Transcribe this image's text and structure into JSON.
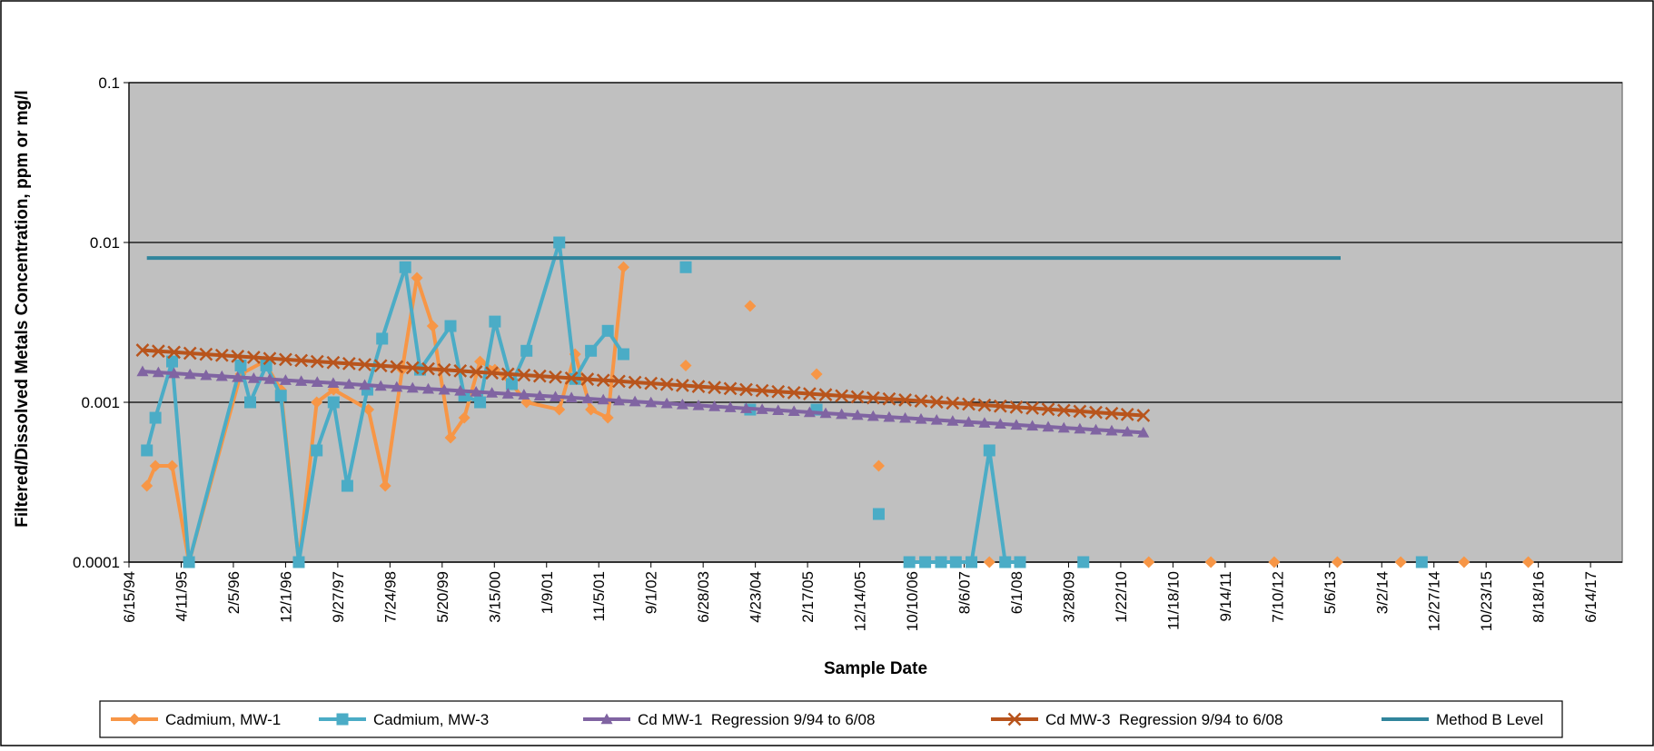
{
  "chart_data": {
    "type": "line",
    "x_label": "Sample Date",
    "y_label": "Filtered/Dissolved Metals Concentration, ppm or mg/l",
    "log_y": true,
    "grid": true,
    "legend": "bottom",
    "plot_background": "#c0c0c0",
    "ylim": [
      0.0001,
      0.1
    ],
    "yticks": [
      0.0001,
      0.001,
      0.01,
      0.1
    ],
    "xlim": [
      "6/15/94",
      "12/13/17"
    ],
    "xticks": [
      "6/15/94",
      "4/11/95",
      "2/5/96",
      "12/1/96",
      "9/27/97",
      "7/24/98",
      "5/20/99",
      "3/15/00",
      "1/9/01",
      "11/5/01",
      "9/1/02",
      "6/28/03",
      "4/23/04",
      "2/17/05",
      "12/14/05",
      "10/10/06",
      "8/6/07",
      "6/1/08",
      "3/28/09",
      "1/22/10",
      "11/18/10",
      "9/14/11",
      "7/10/12",
      "5/6/13",
      "3/2/14",
      "12/27/14",
      "10/23/15",
      "8/18/16",
      "6/14/17"
    ],
    "series": [
      {
        "name": "Cadmium, MW-1",
        "color": "#f79646",
        "marker": "diamond",
        "x": [
          "9/26/94",
          "11/14/94",
          "2/18/95",
          "5/26/95",
          "3/18/96",
          "7/30/96",
          "11/4/96",
          "2/15/97",
          "5/29/97",
          "9/3/97",
          "3/22/98",
          "6/27/98",
          "10/2/98",
          "12/26/98",
          "3/26/99",
          "7/7/99",
          "9/24/99",
          "12/24/99",
          "3/18/00",
          "6/23/00",
          "9/16/00",
          "3/23/01",
          "6/22/01",
          "9/21/01",
          "12/27/01",
          "3/27/02",
          null,
          "3/20/03",
          null,
          "3/24/04",
          null,
          "4/10/05",
          null,
          "4/2/06",
          null,
          "12/29/07",
          null,
          "7/2/10",
          null,
          "6/24/11",
          null,
          "6/22/12",
          null,
          "6/20/13",
          null,
          "6/19/14",
          null,
          "6/18/15",
          null,
          "6/21/16"
        ],
        "values": [
          0.0003,
          0.0004,
          0.0004,
          0.0001,
          0.0015,
          0.0018,
          0.0012,
          0.0001,
          0.001,
          0.0012,
          0.0009,
          0.0003,
          0.0016,
          0.006,
          0.003,
          0.0006,
          0.0008,
          0.0018,
          0.0016,
          0.0013,
          0.001,
          0.0009,
          0.002,
          0.0009,
          0.0008,
          0.007,
          null,
          0.0017,
          null,
          0.004,
          null,
          0.0015,
          null,
          0.0004,
          null,
          0.0001,
          null,
          0.0001,
          null,
          0.0001,
          null,
          0.0001,
          null,
          0.0001,
          null,
          0.0001,
          null,
          0.0001,
          null,
          0.0001
        ]
      },
      {
        "name": "Cadmium, MW-3",
        "color": "#4bacc6",
        "marker": "square",
        "x": [
          "9/26/94",
          "11/14/94",
          "2/18/95",
          "5/26/95",
          "3/18/96",
          "5/12/96",
          "8/12/96",
          "11/4/96",
          "2/15/97",
          "5/29/97",
          "9/3/97",
          "11/21/97",
          "3/16/98",
          "6/9/98",
          "10/20/98",
          "1/13/99",
          "7/7/99",
          "9/24/99",
          "12/24/99",
          "3/18/00",
          "6/23/00",
          "9/16/00",
          "3/23/01",
          "6/22/01",
          "9/21/01",
          "12/27/01",
          "3/27/02",
          null,
          "3/20/03",
          null,
          "3/24/04",
          null,
          "4/10/05",
          null,
          "4/2/06",
          null,
          "9/25/06",
          "12/25/06",
          "3/26/07",
          "6/19/07",
          "9/17/07",
          "12/29/07",
          "3/29/08",
          "6/22/08",
          null,
          "6/21/09",
          null,
          "10/18/14"
        ],
        "values": [
          0.0005,
          0.0008,
          0.0018,
          0.0001,
          0.0017,
          0.001,
          0.0017,
          0.0011,
          0.0001,
          0.0005,
          0.001,
          0.0003,
          0.0012,
          0.0025,
          0.007,
          0.0016,
          0.003,
          0.0011,
          0.001,
          0.0032,
          0.0013,
          0.0021,
          0.01,
          0.0014,
          0.0021,
          0.0028,
          0.002,
          null,
          0.007,
          null,
          0.0009,
          null,
          0.0009,
          null,
          0.0002,
          null,
          0.0001,
          0.0001,
          0.0001,
          0.0001,
          0.0001,
          0.0005,
          0.0001,
          0.0001,
          null,
          0.0001,
          null,
          0.0001
        ]
      },
      {
        "name": "Cd MW-1  Regression 9/94 to 6/08",
        "color": "#8064a2",
        "marker": "triangle",
        "x": [
          "9/1/94",
          "12/1/94",
          "3/1/95",
          "6/1/95",
          "9/1/95",
          "12/1/95",
          "3/1/96",
          "6/1/96",
          "9/1/96",
          "12/1/96",
          "3/1/97",
          "6/1/97",
          "9/1/97",
          "12/1/97",
          "3/1/98",
          "6/1/98",
          "9/1/98",
          "12/1/98",
          "3/1/99",
          "6/1/99",
          "9/1/99",
          "12/1/99",
          "3/1/00",
          "6/1/00",
          "9/1/00",
          "12/1/00",
          "3/1/01",
          "6/1/01",
          "9/1/01",
          "12/1/01",
          "3/1/02",
          "6/1/02",
          "9/1/02",
          "12/1/02",
          "3/1/03",
          "6/1/03",
          "9/1/03",
          "12/1/03",
          "3/1/04",
          "6/1/04",
          "9/1/04",
          "12/1/04",
          "3/1/05",
          "6/1/05",
          "9/1/05",
          "12/1/05",
          "3/1/06",
          "6/1/06",
          "9/1/06",
          "12/1/06",
          "3/1/07",
          "6/1/07",
          "9/1/07",
          "12/1/07",
          "3/1/08",
          "6/1/08",
          "9/1/08",
          "12/1/08",
          "3/1/09",
          "6/1/09",
          "9/1/09",
          "12/1/09",
          "3/1/10",
          "6/1/10"
        ],
        "values": [
          0.00156,
          0.001538,
          0.001517,
          0.001496,
          0.001475,
          0.001455,
          0.001434,
          0.001414,
          0.001395,
          0.001375,
          0.001356,
          0.001337,
          0.001319,
          0.0013,
          0.001282,
          0.001264,
          0.001247,
          0.00123,
          0.001212,
          0.001196,
          0.001179,
          0.001163,
          0.001146,
          0.00113,
          0.001115,
          0.001099,
          0.001084,
          0.001069,
          0.001054,
          0.001039,
          0.001025,
          0.001011,
          0.000997,
          0.000983,
          0.000969,
          0.000956,
          0.000942,
          0.000929,
          0.000916,
          0.000904,
          0.000891,
          0.000879,
          0.000866,
          0.000854,
          0.000842,
          0.000831,
          0.000819,
          0.000808,
          0.000797,
          0.000786,
          0.000775,
          0.000764,
          0.000753,
          0.000743,
          0.000732,
          0.000722,
          0.000712,
          0.000702,
          0.000692,
          0.000683,
          0.000673,
          0.000664,
          0.000655,
          0.000646
        ]
      },
      {
        "name": "Cd MW-3  Regression 9/94 to 6/08",
        "color": "#b8541c",
        "marker": "x",
        "x": [
          "9/1/94",
          "12/1/94",
          "3/1/95",
          "6/1/95",
          "9/1/95",
          "12/1/95",
          "3/1/96",
          "6/1/96",
          "9/1/96",
          "12/1/96",
          "3/1/97",
          "6/1/97",
          "9/1/97",
          "12/1/97",
          "3/1/98",
          "6/1/98",
          "9/1/98",
          "12/1/98",
          "3/1/99",
          "6/1/99",
          "9/1/99",
          "12/1/99",
          "3/1/00",
          "6/1/00",
          "9/1/00",
          "12/1/00",
          "3/1/01",
          "6/1/01",
          "9/1/01",
          "12/1/01",
          "3/1/02",
          "6/1/02",
          "9/1/02",
          "12/1/02",
          "3/1/03",
          "6/1/03",
          "9/1/03",
          "12/1/03",
          "3/1/04",
          "6/1/04",
          "9/1/04",
          "12/1/04",
          "3/1/05",
          "6/1/05",
          "9/1/05",
          "12/1/05",
          "3/1/06",
          "6/1/06",
          "9/1/06",
          "12/1/06",
          "3/1/07",
          "6/1/07",
          "9/1/07",
          "12/1/07",
          "3/1/08",
          "6/1/08",
          "9/1/08",
          "12/1/08",
          "3/1/09",
          "6/1/09",
          "9/1/09",
          "12/1/09",
          "3/1/10",
          "6/1/10"
        ],
        "values": [
          0.00212,
          0.002089,
          0.002058,
          0.002027,
          0.001997,
          0.001968,
          0.001938,
          0.00191,
          0.001881,
          0.001853,
          0.001826,
          0.001799,
          0.001772,
          0.001746,
          0.00172,
          0.001694,
          0.001669,
          0.001644,
          0.00162,
          0.001596,
          0.001572,
          0.001549,
          0.001526,
          0.001503,
          0.001481,
          0.001459,
          0.001437,
          0.001416,
          0.001395,
          0.001374,
          0.001354,
          0.001334,
          0.001314,
          0.001294,
          0.001275,
          0.001256,
          0.001238,
          0.001219,
          0.001201,
          0.001183,
          0.001166,
          0.001149,
          0.001131,
          0.001115,
          0.001098,
          0.001082,
          0.001066,
          0.00105,
          0.001034,
          0.001019,
          0.001004,
          0.000989,
          0.000974,
          0.00096,
          0.000946,
          0.000932,
          0.000918,
          0.000904,
          0.000891,
          0.000878,
          0.000865,
          0.000852,
          0.000839,
          0.000827
        ]
      },
      {
        "name": "Method B Level",
        "color": "#31859c",
        "marker": "none",
        "x": [
          "9/26/94",
          "7/9/13"
        ],
        "values": [
          0.008,
          0.008
        ]
      }
    ]
  }
}
